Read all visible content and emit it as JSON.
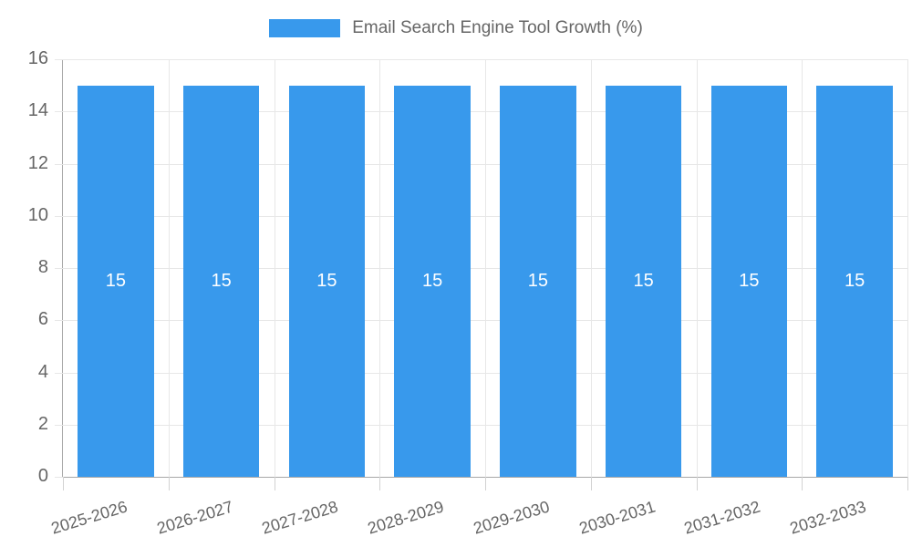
{
  "legend": {
    "swatch_color": "#3899ec",
    "label": "Email Search Engine Tool Growth (%)"
  },
  "chart_data": {
    "type": "bar",
    "title": "Email Search Engine Tool Growth (%)",
    "categories": [
      "2025-2026",
      "2026-2027",
      "2027-2028",
      "2028-2029",
      "2029-2030",
      "2030-2031",
      "2031-2032",
      "2032-2033"
    ],
    "values": [
      15,
      15,
      15,
      15,
      15,
      15,
      15,
      15
    ],
    "value_labels": [
      "15",
      "15",
      "15",
      "15",
      "15",
      "15",
      "15",
      "15"
    ],
    "xlabel": "",
    "ylabel": "",
    "ylim": [
      0,
      16
    ],
    "ytick_step": 2,
    "yticks_top_to_bottom": [
      "16",
      "14",
      "12",
      "10",
      "8",
      "6",
      "4",
      "2",
      "0"
    ],
    "grid": true,
    "legend_position": "top",
    "bar_color": "#3899ec",
    "bar_label_color": "#ffffff",
    "axis_text_color": "#666666"
  }
}
